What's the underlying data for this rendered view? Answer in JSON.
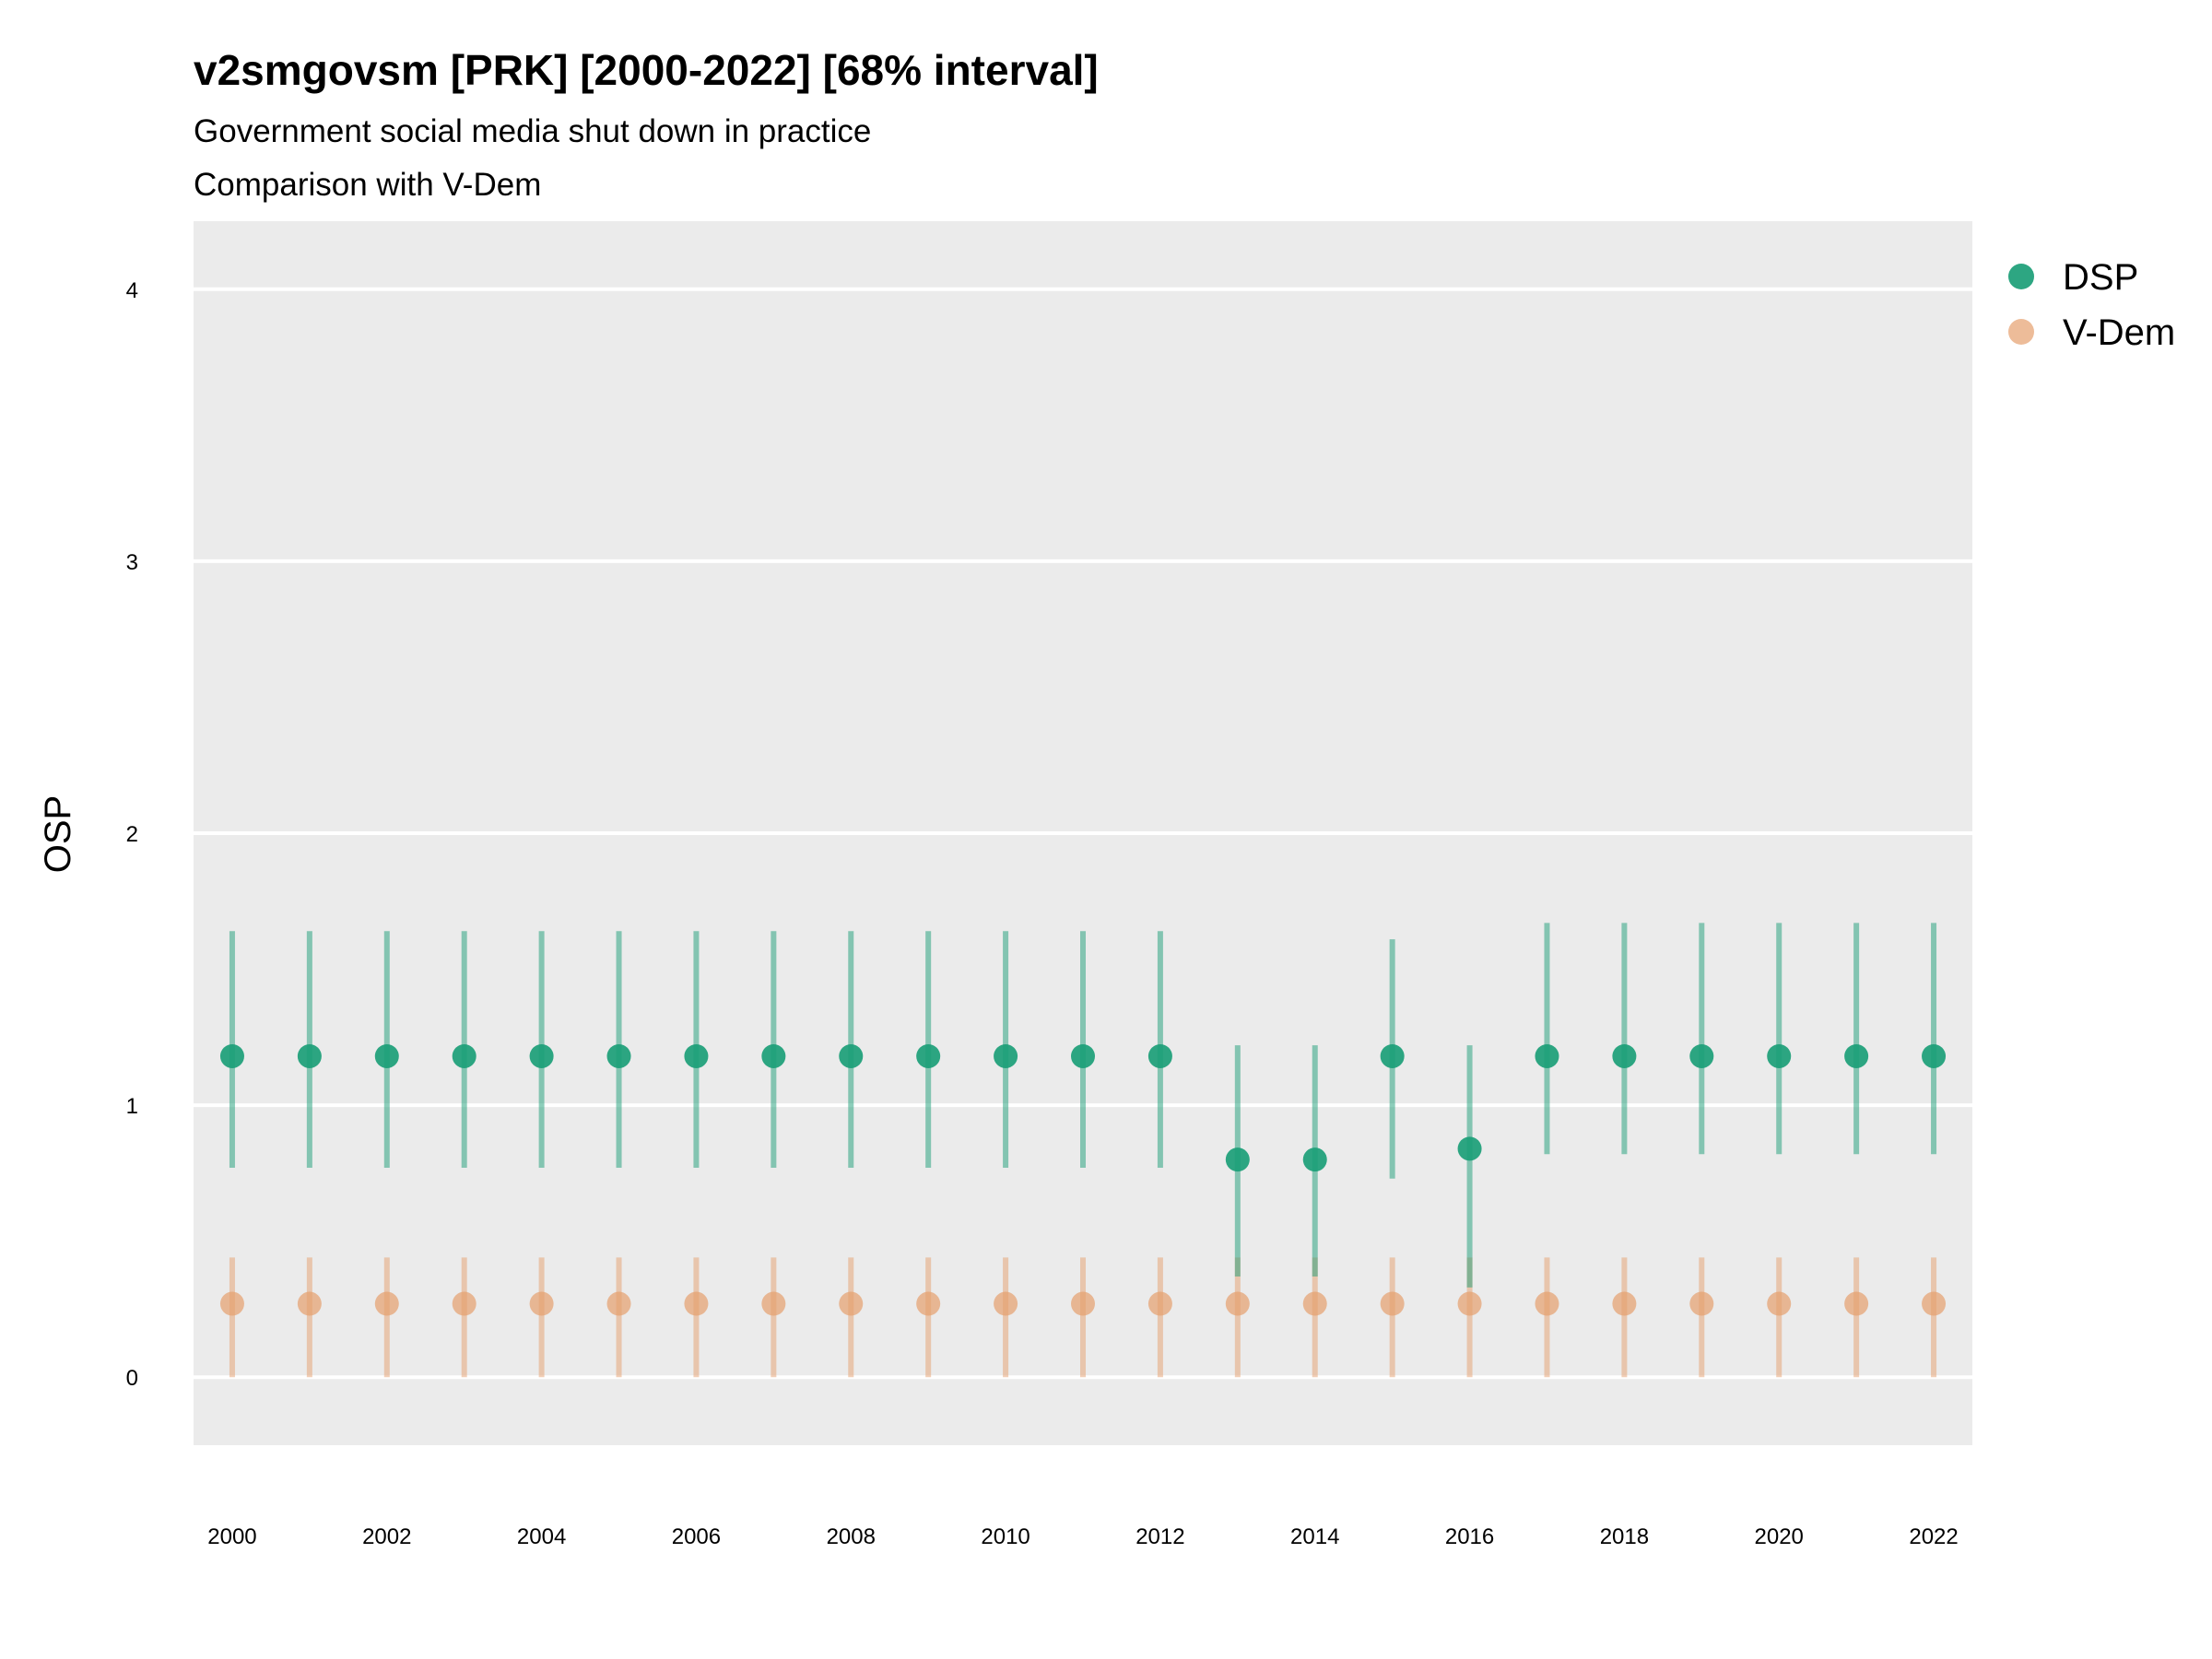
{
  "chart_data": {
    "type": "scatter",
    "title": "v2smgovsm [PRK] [2000-2022] [68% interval]",
    "subtitle": "Government social media shut down in practice",
    "subtitle2": "Comparison with V-Dem",
    "xlabel": "",
    "ylabel": "OSP",
    "x": [
      2000,
      2001,
      2002,
      2003,
      2004,
      2005,
      2006,
      2007,
      2008,
      2009,
      2010,
      2011,
      2012,
      2013,
      2014,
      2015,
      2016,
      2017,
      2018,
      2019,
      2020,
      2021,
      2022
    ],
    "x_ticks": [
      "2000",
      "2002",
      "2004",
      "2006",
      "2008",
      "2010",
      "2012",
      "2014",
      "2016",
      "2018",
      "2020",
      "2022"
    ],
    "y_ticks": [
      "0",
      "1",
      "2",
      "3",
      "4"
    ],
    "xlim": [
      1999.5,
      2022.5
    ],
    "ylim": [
      -0.25,
      4.25
    ],
    "grid": true,
    "legend_position": "right",
    "series": [
      {
        "name": "DSP",
        "color": "#1b9e77",
        "values": [
          1.18,
          1.18,
          1.18,
          1.18,
          1.18,
          1.18,
          1.18,
          1.18,
          1.18,
          1.18,
          1.18,
          1.18,
          1.18,
          0.8,
          0.8,
          1.18,
          0.84,
          1.18,
          1.18,
          1.18,
          1.18,
          1.18,
          1.18
        ],
        "lower": [
          0.77,
          0.77,
          0.77,
          0.77,
          0.77,
          0.77,
          0.77,
          0.77,
          0.77,
          0.77,
          0.77,
          0.77,
          0.77,
          0.37,
          0.37,
          0.73,
          0.33,
          0.82,
          0.82,
          0.82,
          0.82,
          0.82,
          0.82
        ],
        "upper": [
          1.64,
          1.64,
          1.64,
          1.64,
          1.64,
          1.64,
          1.64,
          1.64,
          1.64,
          1.64,
          1.64,
          1.64,
          1.64,
          1.22,
          1.22,
          1.61,
          1.22,
          1.67,
          1.67,
          1.67,
          1.67,
          1.67,
          1.67
        ]
      },
      {
        "name": "V-Dem",
        "color": "#e6a06e",
        "values": [
          0.27,
          0.27,
          0.27,
          0.27,
          0.27,
          0.27,
          0.27,
          0.27,
          0.27,
          0.27,
          0.27,
          0.27,
          0.27,
          0.27,
          0.27,
          0.27,
          0.27,
          0.27,
          0.27,
          0.27,
          0.27,
          0.27,
          0.27
        ],
        "lower": [
          0.0,
          0.0,
          0.0,
          0.0,
          0.0,
          0.0,
          0.0,
          0.0,
          0.0,
          0.0,
          0.0,
          0.0,
          0.0,
          0.0,
          0.0,
          0.0,
          0.0,
          0.0,
          0.0,
          0.0,
          0.0,
          0.0,
          0.0
        ],
        "upper": [
          0.44,
          0.44,
          0.44,
          0.44,
          0.44,
          0.44,
          0.44,
          0.44,
          0.44,
          0.44,
          0.44,
          0.44,
          0.44,
          0.44,
          0.44,
          0.44,
          0.44,
          0.44,
          0.44,
          0.44,
          0.44,
          0.44,
          0.44
        ]
      }
    ]
  }
}
